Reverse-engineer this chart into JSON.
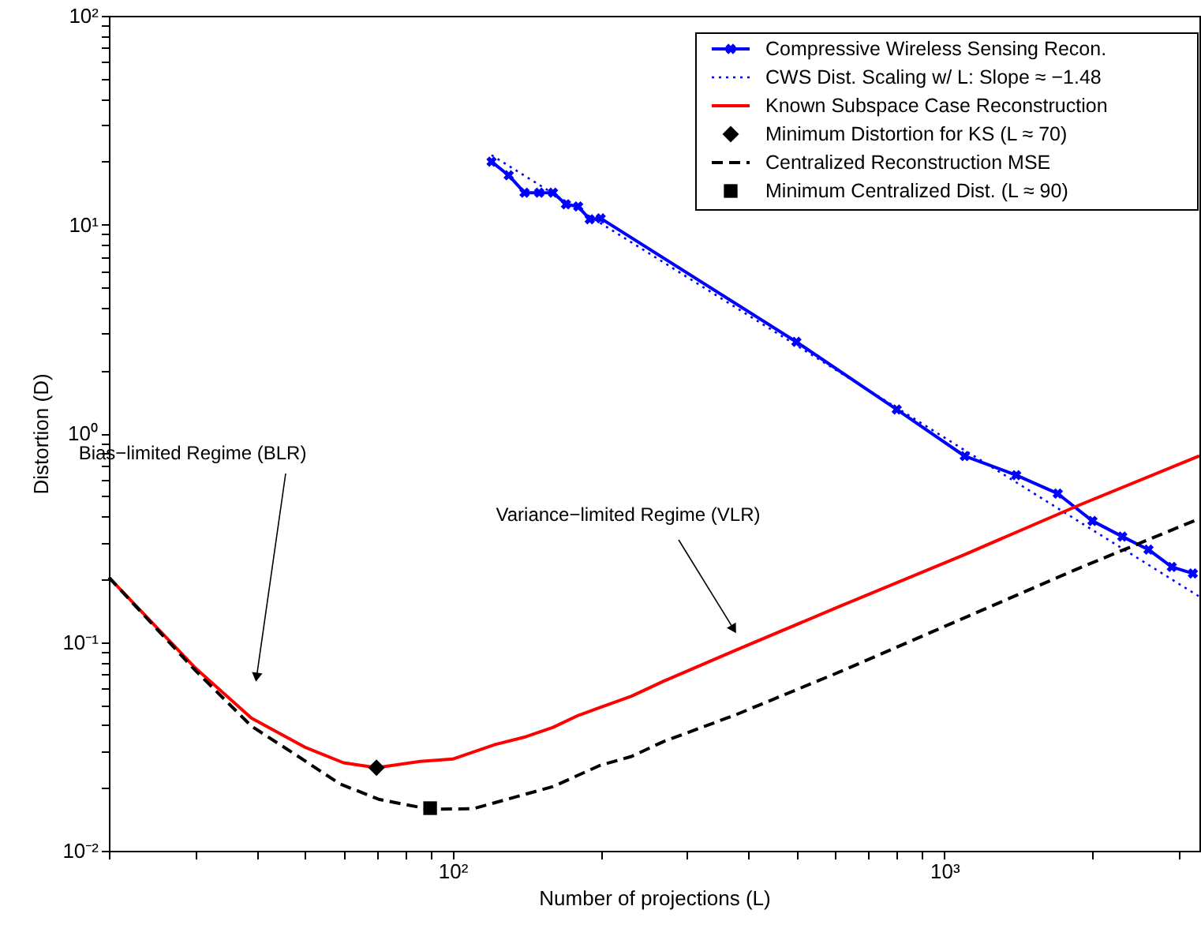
{
  "chart_data": {
    "type": "line",
    "xlabel": "Number of projections (L)",
    "ylabel": "Distortion (D)",
    "log": "xy",
    "grid": false,
    "legend": "top right",
    "xlim": [
      20,
      3300
    ],
    "ylim": [
      0.01,
      100
    ],
    "xticks": [
      {
        "value": 20,
        "label": null
      },
      {
        "value": 30,
        "label": null
      },
      {
        "value": 40,
        "label": null
      },
      {
        "value": 50,
        "label": null
      },
      {
        "value": 60,
        "label": null
      },
      {
        "value": 70,
        "label": null
      },
      {
        "value": 80,
        "label": null
      },
      {
        "value": 90,
        "label": null
      },
      {
        "value": 100,
        "label": "10²"
      },
      {
        "value": 200,
        "label": null
      },
      {
        "value": 300,
        "label": null
      },
      {
        "value": 400,
        "label": null
      },
      {
        "value": 500,
        "label": null
      },
      {
        "value": 600,
        "label": null
      },
      {
        "value": 700,
        "label": null
      },
      {
        "value": 800,
        "label": null
      },
      {
        "value": 900,
        "label": null
      },
      {
        "value": 1000,
        "label": "10³"
      },
      {
        "value": 2000,
        "label": null
      },
      {
        "value": 3000,
        "label": null
      }
    ],
    "yticks": [
      {
        "value": 0.01,
        "label": "10⁻²"
      },
      {
        "value": 0.02,
        "label": null
      },
      {
        "value": 0.03,
        "label": null
      },
      {
        "value": 0.04,
        "label": null
      },
      {
        "value": 0.05,
        "label": null
      },
      {
        "value": 0.06,
        "label": null
      },
      {
        "value": 0.07,
        "label": null
      },
      {
        "value": 0.08,
        "label": null
      },
      {
        "value": 0.09,
        "label": null
      },
      {
        "value": 0.1,
        "label": "10⁻¹"
      },
      {
        "value": 0.2,
        "label": null
      },
      {
        "value": 0.3,
        "label": null
      },
      {
        "value": 0.4,
        "label": null
      },
      {
        "value": 0.5,
        "label": null
      },
      {
        "value": 0.6,
        "label": null
      },
      {
        "value": 0.7,
        "label": null
      },
      {
        "value": 0.8,
        "label": null
      },
      {
        "value": 0.9,
        "label": null
      },
      {
        "value": 1,
        "label": "10⁰"
      },
      {
        "value": 2,
        "label": null
      },
      {
        "value": 3,
        "label": null
      },
      {
        "value": 4,
        "label": null
      },
      {
        "value": 5,
        "label": null
      },
      {
        "value": 6,
        "label": null
      },
      {
        "value": 7,
        "label": null
      },
      {
        "value": 8,
        "label": null
      },
      {
        "value": 9,
        "label": null
      },
      {
        "value": 10,
        "label": "10¹"
      },
      {
        "value": 20,
        "label": null
      },
      {
        "value": 30,
        "label": null
      },
      {
        "value": 40,
        "label": null
      },
      {
        "value": 50,
        "label": null
      },
      {
        "value": 60,
        "label": null
      },
      {
        "value": 70,
        "label": null
      },
      {
        "value": 80,
        "label": null
      },
      {
        "value": 90,
        "label": null
      },
      {
        "value": 100,
        "label": "10²"
      }
    ],
    "series": [
      {
        "name": "Compressive Wireless Sensing Recon.",
        "type": "line",
        "color": "#0000ff",
        "marker": "cross",
        "line_style": "solid",
        "x": [
          120,
          130,
          140,
          150,
          160,
          170,
          180,
          190,
          200,
          500,
          800,
          1100,
          1400,
          1700,
          2000,
          2300,
          2600,
          2900,
          3200
        ],
        "values": [
          20,
          17.2,
          14.2,
          14.2,
          14.2,
          12.5,
          12.2,
          10.6,
          10.7,
          2.74,
          1.3,
          0.777,
          0.63,
          0.514,
          0.38,
          0.32,
          0.277,
          0.229,
          0.213
        ]
      },
      {
        "name": "CWS Dist. Scaling w/ L: Slope ≈ −1.48",
        "type": "line",
        "color": "#0000ff",
        "marker": "none",
        "line_style": "dotted",
        "x": [
          120,
          3300
        ],
        "values": [
          21.5,
          0.165
        ]
      },
      {
        "name": "Known Subspace Case Reconstruction",
        "type": "line",
        "color": "#ff0000",
        "marker": "none",
        "line_style": "solid",
        "x": [
          20,
          30,
          39,
          50,
          60,
          70,
          86,
          100,
          122,
          141,
          160,
          180,
          199,
          231,
          268,
          378,
          620,
          1093,
          1880,
          3300
        ],
        "values": [
          0.204,
          0.075,
          0.0432,
          0.0314,
          0.0264,
          0.025,
          0.0268,
          0.0275,
          0.0323,
          0.0352,
          0.039,
          0.0445,
          0.0485,
          0.055,
          0.0648,
          0.0918,
          0.15,
          0.261,
          0.453,
          0.78
        ]
      },
      {
        "name": "Minimum Distortion for KS (L ≈ 70)",
        "type": "scatter",
        "color": "#000000",
        "marker": "diamond",
        "x": [
          70
        ],
        "values": [
          0.025
        ]
      },
      {
        "name": "Centralized Reconstruction MSE",
        "type": "line",
        "color": "#000000",
        "marker": "none",
        "line_style": "dashed",
        "x": [
          20,
          30,
          39,
          48,
          59,
          71,
          90,
          110,
          160,
          199,
          231,
          268,
          378,
          620,
          1093,
          1880,
          3300
        ],
        "values": [
          0.204,
          0.073,
          0.0395,
          0.0288,
          0.0209,
          0.0176,
          0.0158,
          0.0159,
          0.0203,
          0.0256,
          0.0283,
          0.0333,
          0.045,
          0.0728,
          0.13,
          0.226,
          0.39
        ]
      },
      {
        "name": "Minimum Centralized Dist. (L ≈ 90)",
        "type": "scatter",
        "color": "#000000",
        "marker": "square",
        "x": [
          90
        ],
        "values": [
          0.016
        ]
      }
    ],
    "annotations": [
      "Bias−limited Regime (BLR)",
      "Variance−limited Regime (VLR)"
    ]
  }
}
